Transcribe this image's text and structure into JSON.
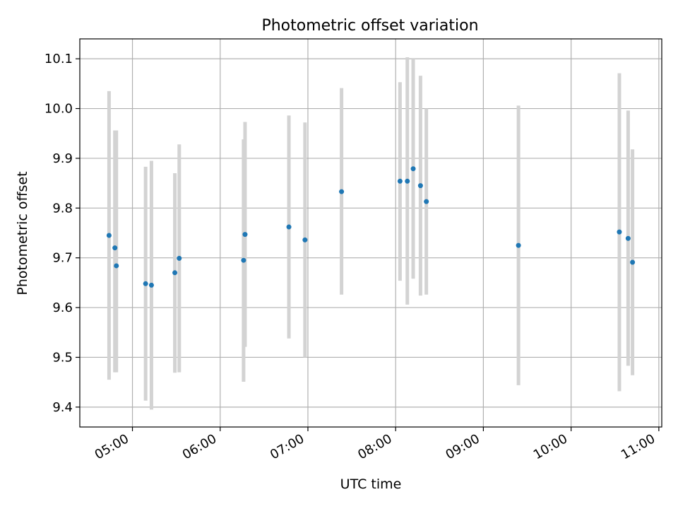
{
  "chart_data": {
    "type": "scatter",
    "title": "Photometric offset variation",
    "xlabel": "UTC time",
    "ylabel": "Photometric offset",
    "x_unit": "UTC",
    "xlim": [
      "04:24",
      "11:02"
    ],
    "ylim": [
      9.36,
      10.14
    ],
    "x_ticks": [
      "05:00",
      "06:00",
      "07:00",
      "08:00",
      "09:00",
      "10:00",
      "11:00"
    ],
    "y_ticks": [
      "9.4",
      "9.5",
      "9.6",
      "9.7",
      "9.8",
      "9.9",
      "10.0",
      "10.1"
    ],
    "grid": true,
    "colors": {
      "point": "#1f77b4",
      "errorbar": "#d3d3d3",
      "grid": "#b0b0b0"
    },
    "series": [
      {
        "points": [
          {
            "x": "04:44",
            "y": 9.745,
            "ylow": 9.455,
            "yhigh": 10.035
          },
          {
            "x": "04:48",
            "y": 9.72,
            "ylow": 9.47,
            "yhigh": 9.956
          },
          {
            "x": "04:49",
            "y": 9.684,
            "ylow": 9.47,
            "yhigh": 9.956
          },
          {
            "x": "05:09",
            "y": 9.648,
            "ylow": 9.413,
            "yhigh": 9.883
          },
          {
            "x": "05:13",
            "y": 9.645,
            "ylow": 9.395,
            "yhigh": 9.895
          },
          {
            "x": "05:29",
            "y": 9.67,
            "ylow": 9.469,
            "yhigh": 9.87
          },
          {
            "x": "05:32",
            "y": 9.699,
            "ylow": 9.47,
            "yhigh": 9.928
          },
          {
            "x": "06:16",
            "y": 9.695,
            "ylow": 9.451,
            "yhigh": 9.938
          },
          {
            "x": "06:17",
            "y": 9.747,
            "ylow": 9.521,
            "yhigh": 9.973
          },
          {
            "x": "06:47",
            "y": 9.762,
            "ylow": 9.538,
            "yhigh": 9.986
          },
          {
            "x": "06:58",
            "y": 9.736,
            "ylow": 9.5,
            "yhigh": 9.972
          },
          {
            "x": "07:23",
            "y": 9.833,
            "ylow": 9.626,
            "yhigh": 10.041
          },
          {
            "x": "08:03",
            "y": 9.854,
            "ylow": 9.654,
            "yhigh": 10.053
          },
          {
            "x": "08:08",
            "y": 9.854,
            "ylow": 9.606,
            "yhigh": 10.103
          },
          {
            "x": "08:12",
            "y": 9.879,
            "ylow": 9.658,
            "yhigh": 10.1
          },
          {
            "x": "08:17",
            "y": 9.845,
            "ylow": 9.624,
            "yhigh": 10.066
          },
          {
            "x": "08:21",
            "y": 9.813,
            "ylow": 9.626,
            "yhigh": 10.0
          },
          {
            "x": "09:24",
            "y": 9.725,
            "ylow": 9.444,
            "yhigh": 10.006
          },
          {
            "x": "10:33",
            "y": 9.752,
            "ylow": 9.432,
            "yhigh": 10.071
          },
          {
            "x": "10:39",
            "y": 9.739,
            "ylow": 9.483,
            "yhigh": 9.996
          },
          {
            "x": "10:42",
            "y": 9.691,
            "ylow": 9.464,
            "yhigh": 9.918
          }
        ]
      }
    ]
  }
}
